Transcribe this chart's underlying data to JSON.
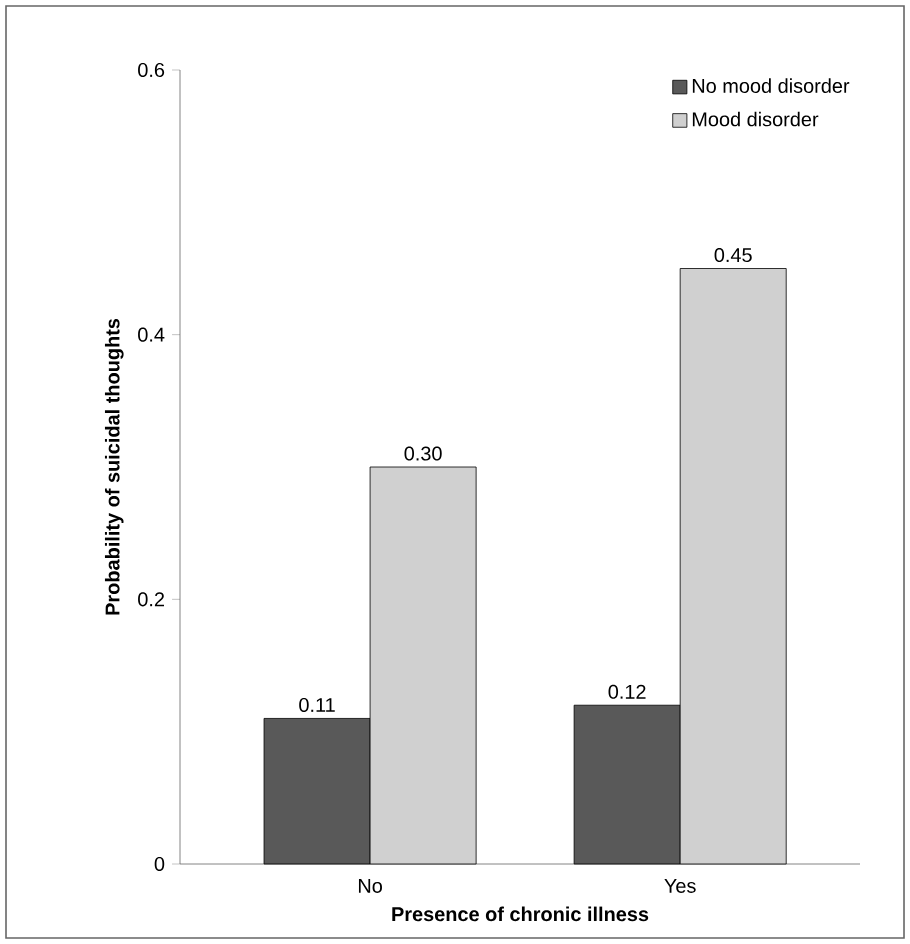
{
  "chart_data": {
    "type": "bar",
    "xlabel": "Presence of chronic illness",
    "ylabel": "Probability of suicidal thoughts",
    "categories": [
      "No",
      "Yes"
    ],
    "series": [
      {
        "name": "No mood disorder",
        "color": "#595959",
        "values": [
          0.11,
          0.12
        ],
        "value_labels": [
          "0.11",
          "0.12"
        ]
      },
      {
        "name": "Mood disorder",
        "color": "#d0d0d0",
        "values": [
          0.3,
          0.45
        ],
        "value_labels": [
          "0.30",
          "0.45"
        ]
      }
    ],
    "ylim": [
      0,
      0.6
    ],
    "yticks": [
      0,
      0.2,
      0.4,
      0.6
    ],
    "legend": "top right"
  }
}
